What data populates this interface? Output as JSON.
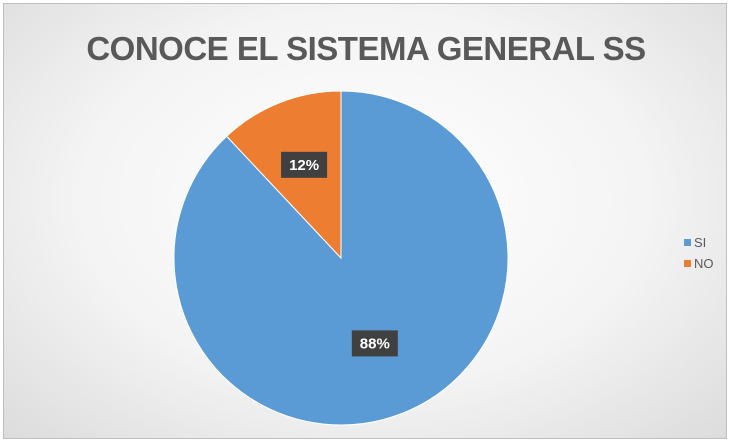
{
  "chart_data": {
    "type": "pie",
    "title": "CONOCE EL SISTEMA GENERAL SS",
    "categories": [
      "SI",
      "NO"
    ],
    "values": [
      88,
      12
    ],
    "value_labels": [
      "88%",
      "12%"
    ],
    "colors": [
      "#5b9bd5",
      "#ed7d31"
    ],
    "legend_position": "right"
  }
}
